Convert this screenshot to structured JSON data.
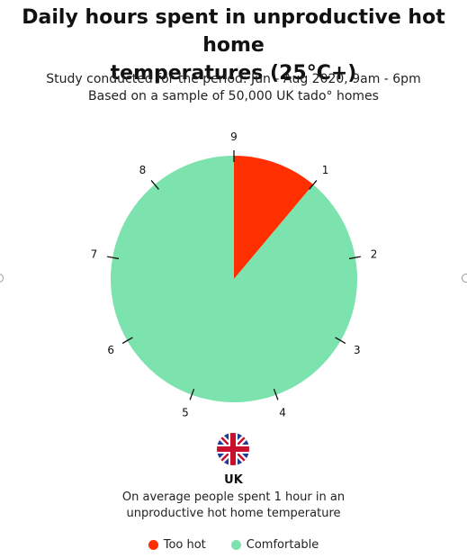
{
  "title_line1": "Daily hours spent in unproductive hot home",
  "title_line2": "temperatures (25°C+)",
  "subtitle_line1": "Study conducted for the period: Jun - Aug 2020, 9am - 6pm",
  "subtitle_line2": "Based on a sample of 50,000 UK tado° homes",
  "region": "UK",
  "caption_line1": "On average people spent 1 hour in an",
  "caption_line2": "unproductive hot home temperature",
  "chart_data": {
    "type": "pie",
    "title": "Daily hours spent in unproductive hot home temperatures (25°C+)",
    "tick_labels": [
      "9",
      "1",
      "2",
      "3",
      "4",
      "5",
      "6",
      "7",
      "8"
    ],
    "slices": [
      {
        "name": "Too hot",
        "value": 1,
        "color": "#ff2f00"
      },
      {
        "name": "Comfortable",
        "value": 8,
        "color": "#7de3ae"
      }
    ],
    "legend_placement": "bottom"
  },
  "legend": [
    {
      "label": "Too hot",
      "color": "#ff2f00"
    },
    {
      "label": "Comfortable",
      "color": "#7de3ae"
    }
  ],
  "icons": {
    "flag": "uk-flag-icon"
  }
}
